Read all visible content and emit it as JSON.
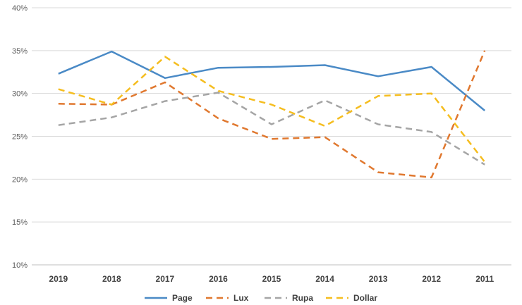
{
  "chart_data": {
    "type": "line",
    "categories": [
      "2019",
      "2018",
      "2017",
      "2016",
      "2015",
      "2014",
      "2013",
      "2012",
      "2011"
    ],
    "ylim": [
      0.1,
      0.4
    ],
    "yticks": [
      0.1,
      0.15,
      0.2,
      0.25,
      0.3,
      0.35,
      0.4
    ],
    "ytick_labels": [
      "10%",
      "15%",
      "20%",
      "25%",
      "30%",
      "35%",
      "40%"
    ],
    "grid": true,
    "legend_position": "bottom",
    "series": [
      {
        "name": "Page",
        "color": "#4a8ac6",
        "dash": "solid",
        "values": [
          0.323,
          0.349,
          0.318,
          0.33,
          0.331,
          0.333,
          0.32,
          0.331,
          0.28
        ]
      },
      {
        "name": "Lux",
        "color": "#e0782f",
        "dash": "dashed",
        "values": [
          0.288,
          0.287,
          0.313,
          0.271,
          0.247,
          0.249,
          0.208,
          0.202,
          0.35
        ]
      },
      {
        "name": "Rupa",
        "color": "#a5a5a5",
        "dash": "dashed",
        "values": [
          0.263,
          0.272,
          0.291,
          0.301,
          0.264,
          0.292,
          0.264,
          0.255,
          0.217
        ]
      },
      {
        "name": "Dollar",
        "color": "#f5bd1f",
        "dash": "dashed",
        "values": [
          0.305,
          0.287,
          0.343,
          0.303,
          0.287,
          0.262,
          0.297,
          0.3,
          0.22
        ]
      }
    ]
  }
}
